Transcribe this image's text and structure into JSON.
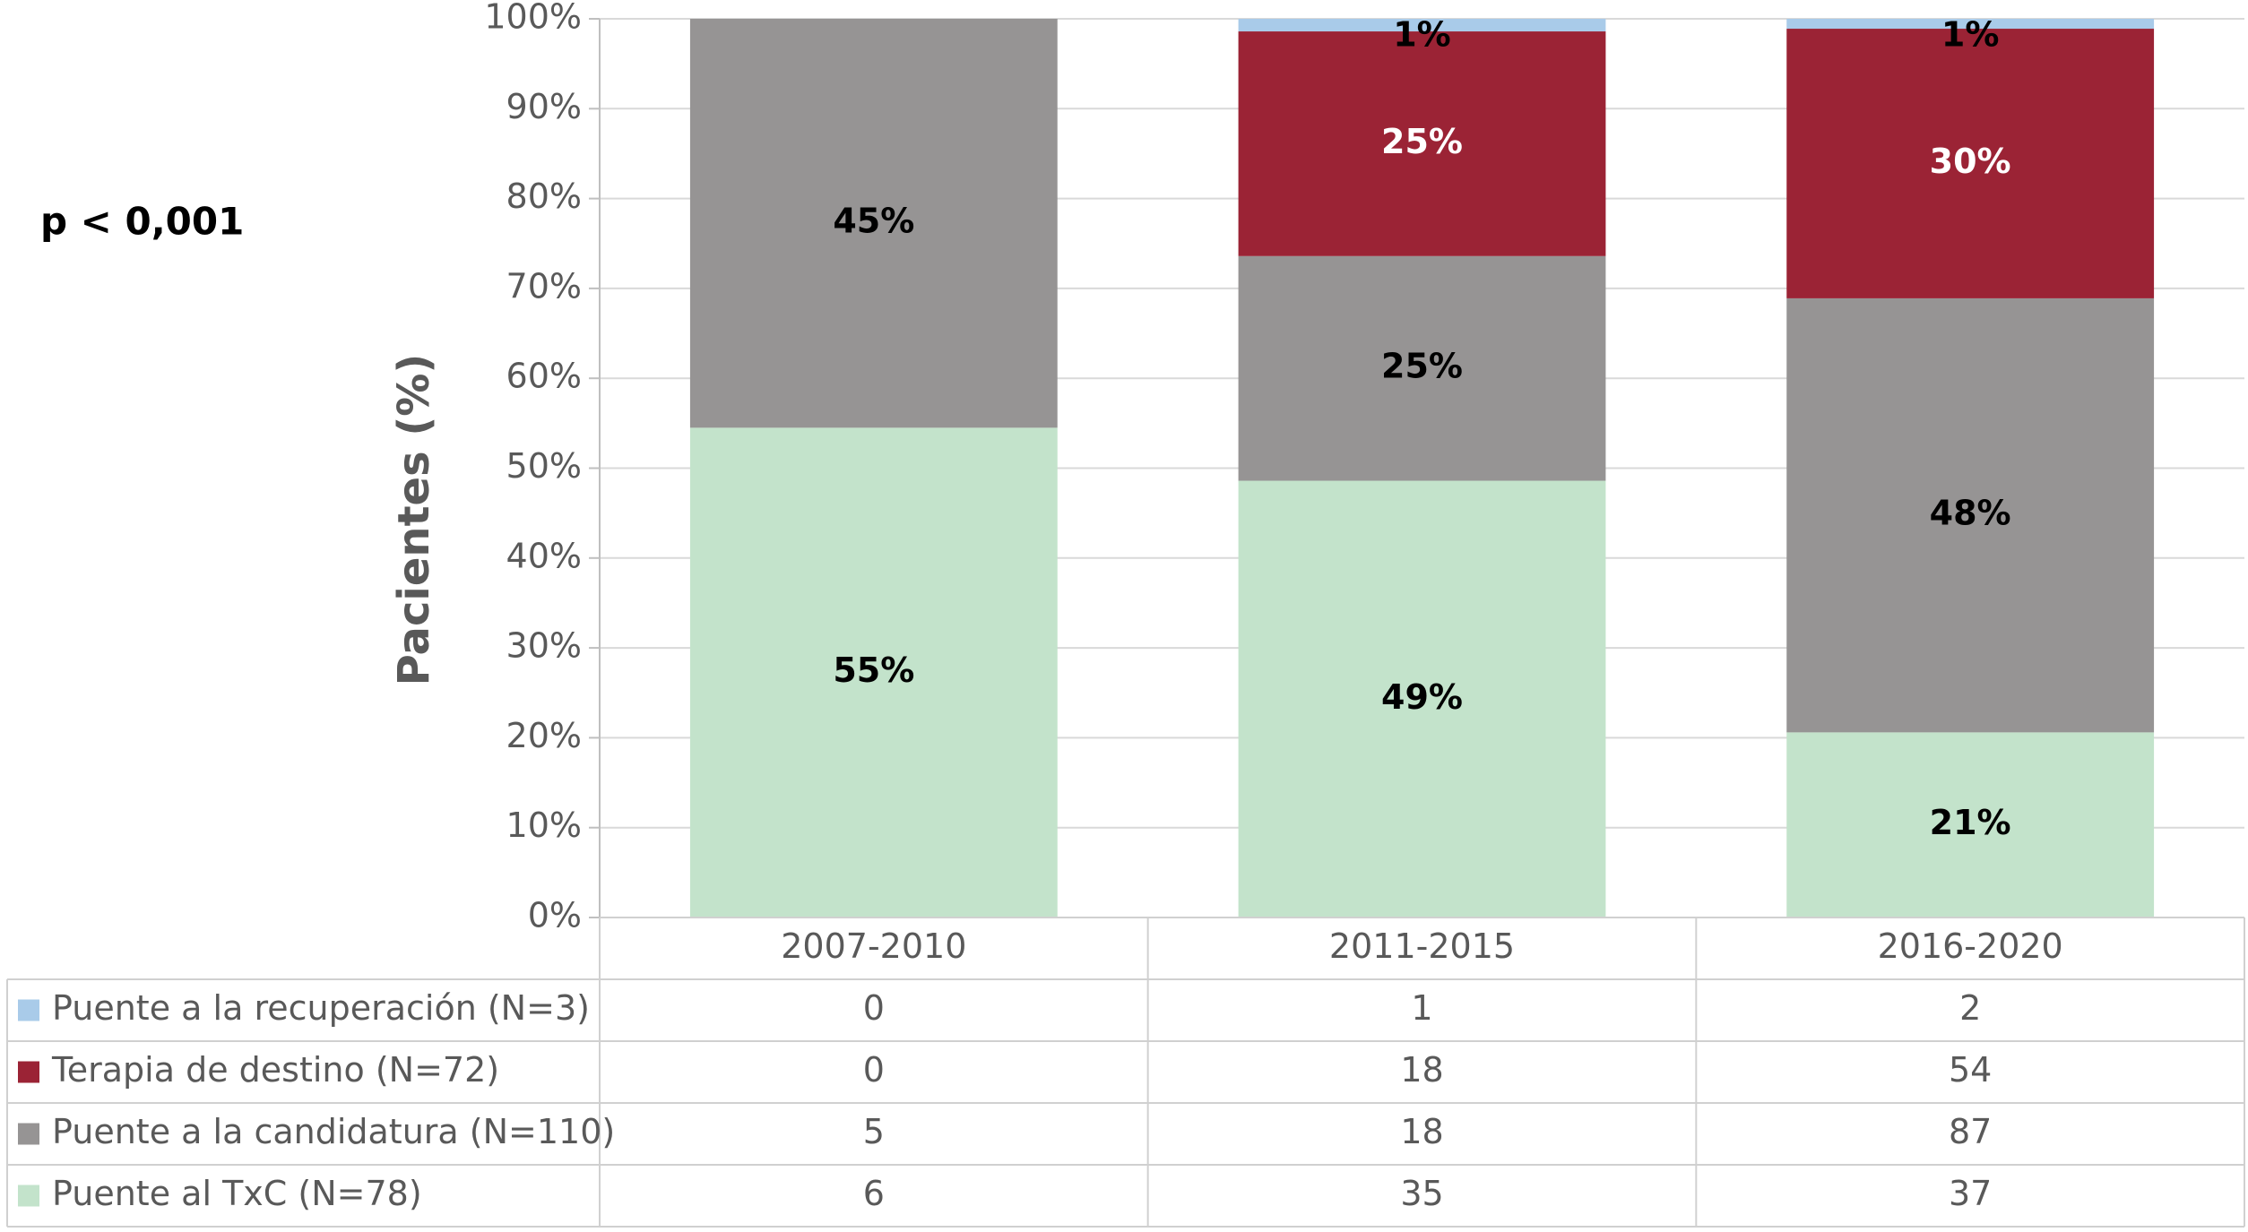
{
  "chart_data": {
    "type": "stacked_bar",
    "y_label": "Pacientes (%)",
    "annotation": "p < 0,001",
    "categories": [
      "2007-2010",
      "2011-2015",
      "2016-2020"
    ],
    "ylim": [
      0,
      100
    ],
    "yticks": [
      {
        "value": 0,
        "label": "0%"
      },
      {
        "value": 10,
        "label": "10%"
      },
      {
        "value": 20,
        "label": "20%"
      },
      {
        "value": 30,
        "label": "30%"
      },
      {
        "value": 40,
        "label": "40%"
      },
      {
        "value": 50,
        "label": "50%"
      },
      {
        "value": 60,
        "label": "60%"
      },
      {
        "value": 70,
        "label": "70%"
      },
      {
        "value": 80,
        "label": "80%"
      },
      {
        "value": 90,
        "label": "90%"
      },
      {
        "value": 100,
        "label": "100%"
      }
    ],
    "grid": true,
    "series": [
      {
        "name": "Puente al TxC (N=78)",
        "color": "#c3e3cb",
        "label_color": "#000000",
        "values": [
          54.5,
          48.6,
          20.6
        ],
        "value_labels": [
          "55%",
          "49%",
          "21%"
        ],
        "counts": [
          6,
          35,
          37
        ]
      },
      {
        "name": "Puente a la candidatura (N=110)",
        "color": "#969494",
        "label_color": "#000000",
        "values": [
          45.5,
          25,
          48.3
        ],
        "value_labels": [
          "45%",
          "25%",
          "48%"
        ],
        "counts": [
          5,
          18,
          87
        ]
      },
      {
        "name": "Terapia de destino (N=72)",
        "color": "#9b2335",
        "label_color": "#ffffff",
        "values": [
          0,
          25,
          30
        ],
        "value_labels": [
          null,
          "25%",
          "30%"
        ],
        "counts": [
          0,
          18,
          54
        ]
      },
      {
        "name": "Puente a la recuperación (N=3)",
        "color": "#a9cbe9",
        "label_color": "#000000",
        "values": [
          0,
          1.4,
          1.1
        ],
        "value_labels": [
          null,
          "1%",
          "1%"
        ],
        "counts": [
          0,
          1,
          2
        ]
      }
    ]
  }
}
